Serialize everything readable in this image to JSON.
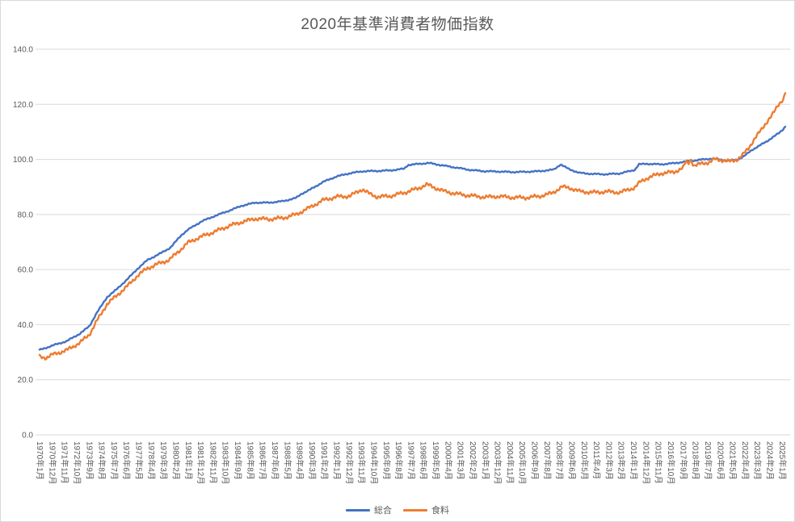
{
  "chart_data": {
    "type": "line",
    "title": "2020年基準消費者物価指数",
    "xlabel": "",
    "ylabel": "",
    "ylim": [
      0,
      140
    ],
    "ytick_step": 20,
    "ytick_labels": [
      "0.0",
      "20.0",
      "40.0",
      "60.0",
      "80.0",
      "100.0",
      "120.0",
      "140.0"
    ],
    "x_unit": "month",
    "x_start": "1970年1月",
    "x_end": "2025年4月",
    "x_months_count": 664,
    "xtick_every_months": 11,
    "xtick_labels": [
      "1970年1月",
      "1970年12月",
      "1971年11月",
      "1972年10月",
      "1973年9月",
      "1974年8月",
      "1975年7月",
      "1976年6月",
      "1977年5月",
      "1978年4月",
      "1979年3月",
      "1980年2月",
      "1981年1月",
      "1981年12月",
      "1982年11月",
      "1983年10月",
      "1984年9月",
      "1985年8月",
      "1986年7月",
      "1987年6月",
      "1988年5月",
      "1989年4月",
      "1990年3月",
      "1991年2月",
      "1992年1月",
      "1992年12月",
      "1993年11月",
      "1994年10月",
      "1995年9月",
      "1996年8月",
      "1997年7月",
      "1998年6月",
      "1999年5月",
      "2000年4月",
      "2001年3月",
      "2002年2月",
      "2003年1月",
      "2003年12月",
      "2004年11月",
      "2005年10月",
      "2006年9月",
      "2007年8月",
      "2008年7月",
      "2009年6月",
      "2010年5月",
      "2011年4月",
      "2012年3月",
      "2013年2月",
      "2014年1月",
      "2014年12月",
      "2015年11月",
      "2016年10月",
      "2017年9月",
      "2018年8月",
      "2019年7月",
      "2020年6月",
      "2021年5月",
      "2022年4月",
      "2023年3月",
      "2024年2月",
      "2025年1月"
    ],
    "grid": true,
    "legend_position": "bottom",
    "colors": {
      "grid": "#d9d9d9",
      "axis": "#d9d9d9",
      "text": "#595959",
      "background": "#ffffff"
    },
    "series": [
      {
        "name": "総合",
        "color": "#4472C4",
        "jitter": 0.28,
        "anchors": [
          [
            1970,
            30.8
          ],
          [
            1971,
            32.5
          ],
          [
            1972,
            34.0
          ],
          [
            1973,
            36.8
          ],
          [
            1973.7,
            39.5
          ],
          [
            1974.2,
            44.0
          ],
          [
            1975,
            50.0
          ],
          [
            1975.7,
            52.8
          ],
          [
            1976.5,
            56.5
          ],
          [
            1977.3,
            60.5
          ],
          [
            1978,
            63.5
          ],
          [
            1979,
            66.0
          ],
          [
            1979.7,
            68.0
          ],
          [
            1980.5,
            72.5
          ],
          [
            1981,
            74.5
          ],
          [
            1982,
            77.5
          ],
          [
            1983,
            79.5
          ],
          [
            1984,
            81.3
          ],
          [
            1985,
            83.2
          ],
          [
            1986,
            84.3
          ],
          [
            1987,
            84.3
          ],
          [
            1988,
            84.8
          ],
          [
            1989,
            86.0
          ],
          [
            1989.4,
            87.5
          ],
          [
            1990,
            88.9
          ],
          [
            1991,
            91.8
          ],
          [
            1992,
            93.8
          ],
          [
            1993,
            95.0
          ],
          [
            1994,
            95.7
          ],
          [
            1995,
            95.8
          ],
          [
            1996,
            96.0
          ],
          [
            1997,
            96.6
          ],
          [
            1997.3,
            98.0
          ],
          [
            1998,
            98.3
          ],
          [
            1998.8,
            98.7
          ],
          [
            2000,
            97.7
          ],
          [
            2001,
            96.9
          ],
          [
            2002,
            96.1
          ],
          [
            2003,
            95.7
          ],
          [
            2004,
            95.6
          ],
          [
            2005,
            95.4
          ],
          [
            2006,
            95.5
          ],
          [
            2007,
            95.7
          ],
          [
            2008.1,
            96.3
          ],
          [
            2008.6,
            98.2
          ],
          [
            2009.2,
            96.5
          ],
          [
            2010,
            95.1
          ],
          [
            2011,
            94.7
          ],
          [
            2012,
            94.6
          ],
          [
            2013,
            94.9
          ],
          [
            2014.1,
            96.2
          ],
          [
            2014.4,
            98.2
          ],
          [
            2015,
            98.4
          ],
          [
            2016,
            98.2
          ],
          [
            2017,
            98.6
          ],
          [
            2018,
            99.3
          ],
          [
            2019,
            99.9
          ],
          [
            2019.8,
            100.3
          ],
          [
            2020.3,
            100.0
          ],
          [
            2021,
            99.5
          ],
          [
            2021.7,
            99.9
          ],
          [
            2022.2,
            101.2
          ],
          [
            2022.8,
            103.5
          ],
          [
            2023.3,
            104.9
          ],
          [
            2023.8,
            106.3
          ],
          [
            2024.3,
            108.0
          ],
          [
            2024.8,
            109.6
          ],
          [
            2025.1,
            111.0
          ],
          [
            2025.25,
            112.0
          ]
        ]
      },
      {
        "name": "食料",
        "color": "#ED7D31",
        "jitter": 0.8,
        "anchors": [
          [
            1970,
            28.4
          ],
          [
            1970.5,
            28.0
          ],
          [
            1971,
            29.2
          ],
          [
            1972,
            30.7
          ],
          [
            1973,
            33.5
          ],
          [
            1973.7,
            36.5
          ],
          [
            1974.2,
            41.0
          ],
          [
            1975,
            47.5
          ],
          [
            1975.7,
            50.5
          ],
          [
            1976.5,
            54.0
          ],
          [
            1977.3,
            58.0
          ],
          [
            1978,
            60.5
          ],
          [
            1979,
            62.5
          ],
          [
            1979.6,
            63.5
          ],
          [
            1980.5,
            67.5
          ],
          [
            1981,
            69.8
          ],
          [
            1982,
            72.0
          ],
          [
            1983,
            73.8
          ],
          [
            1984,
            75.8
          ],
          [
            1985,
            77.3
          ],
          [
            1986,
            78.5
          ],
          [
            1987,
            78.3
          ],
          [
            1988,
            78.7
          ],
          [
            1989,
            80.0
          ],
          [
            1990,
            82.5
          ],
          [
            1991,
            85.2
          ],
          [
            1992,
            86.4
          ],
          [
            1993,
            86.7
          ],
          [
            1993.9,
            89.2
          ],
          [
            1994.4,
            87.6
          ],
          [
            1995,
            86.4
          ],
          [
            1996,
            86.7
          ],
          [
            1997,
            87.9
          ],
          [
            1998,
            89.4
          ],
          [
            1998.7,
            90.9
          ],
          [
            1999.4,
            89.5
          ],
          [
            2000,
            88.4
          ],
          [
            2001,
            87.4
          ],
          [
            2002,
            86.8
          ],
          [
            2003,
            86.3
          ],
          [
            2004,
            86.6
          ],
          [
            2005,
            86.2
          ],
          [
            2006,
            86.1
          ],
          [
            2007,
            86.6
          ],
          [
            2008,
            87.8
          ],
          [
            2008.7,
            90.1
          ],
          [
            2009.3,
            89.6
          ],
          [
            2010,
            88.4
          ],
          [
            2011,
            88.0
          ],
          [
            2012,
            88.3
          ],
          [
            2013,
            88.0
          ],
          [
            2014.1,
            89.8
          ],
          [
            2014.5,
            91.8
          ],
          [
            2015,
            93.2
          ],
          [
            2016,
            94.9
          ],
          [
            2017,
            95.4
          ],
          [
            2017.7,
            97.0
          ],
          [
            2017.9,
            99.3
          ],
          [
            2018.05,
            98.2
          ],
          [
            2018.2,
            100.2
          ],
          [
            2018.5,
            97.7
          ],
          [
            2019,
            98.4
          ],
          [
            2019.6,
            99.0
          ],
          [
            2020,
            100.0
          ],
          [
            2020.7,
            99.7
          ],
          [
            2021.1,
            99.2
          ],
          [
            2021.6,
            99.8
          ],
          [
            2022,
            101.2
          ],
          [
            2022.5,
            103.8
          ],
          [
            2023,
            107.8
          ],
          [
            2023.5,
            110.8
          ],
          [
            2024,
            114.5
          ],
          [
            2024.4,
            117.0
          ],
          [
            2024.75,
            119.8
          ],
          [
            2025,
            121.5
          ],
          [
            2025.1,
            121.8
          ],
          [
            2025.25,
            124.5
          ]
        ]
      }
    ]
  }
}
